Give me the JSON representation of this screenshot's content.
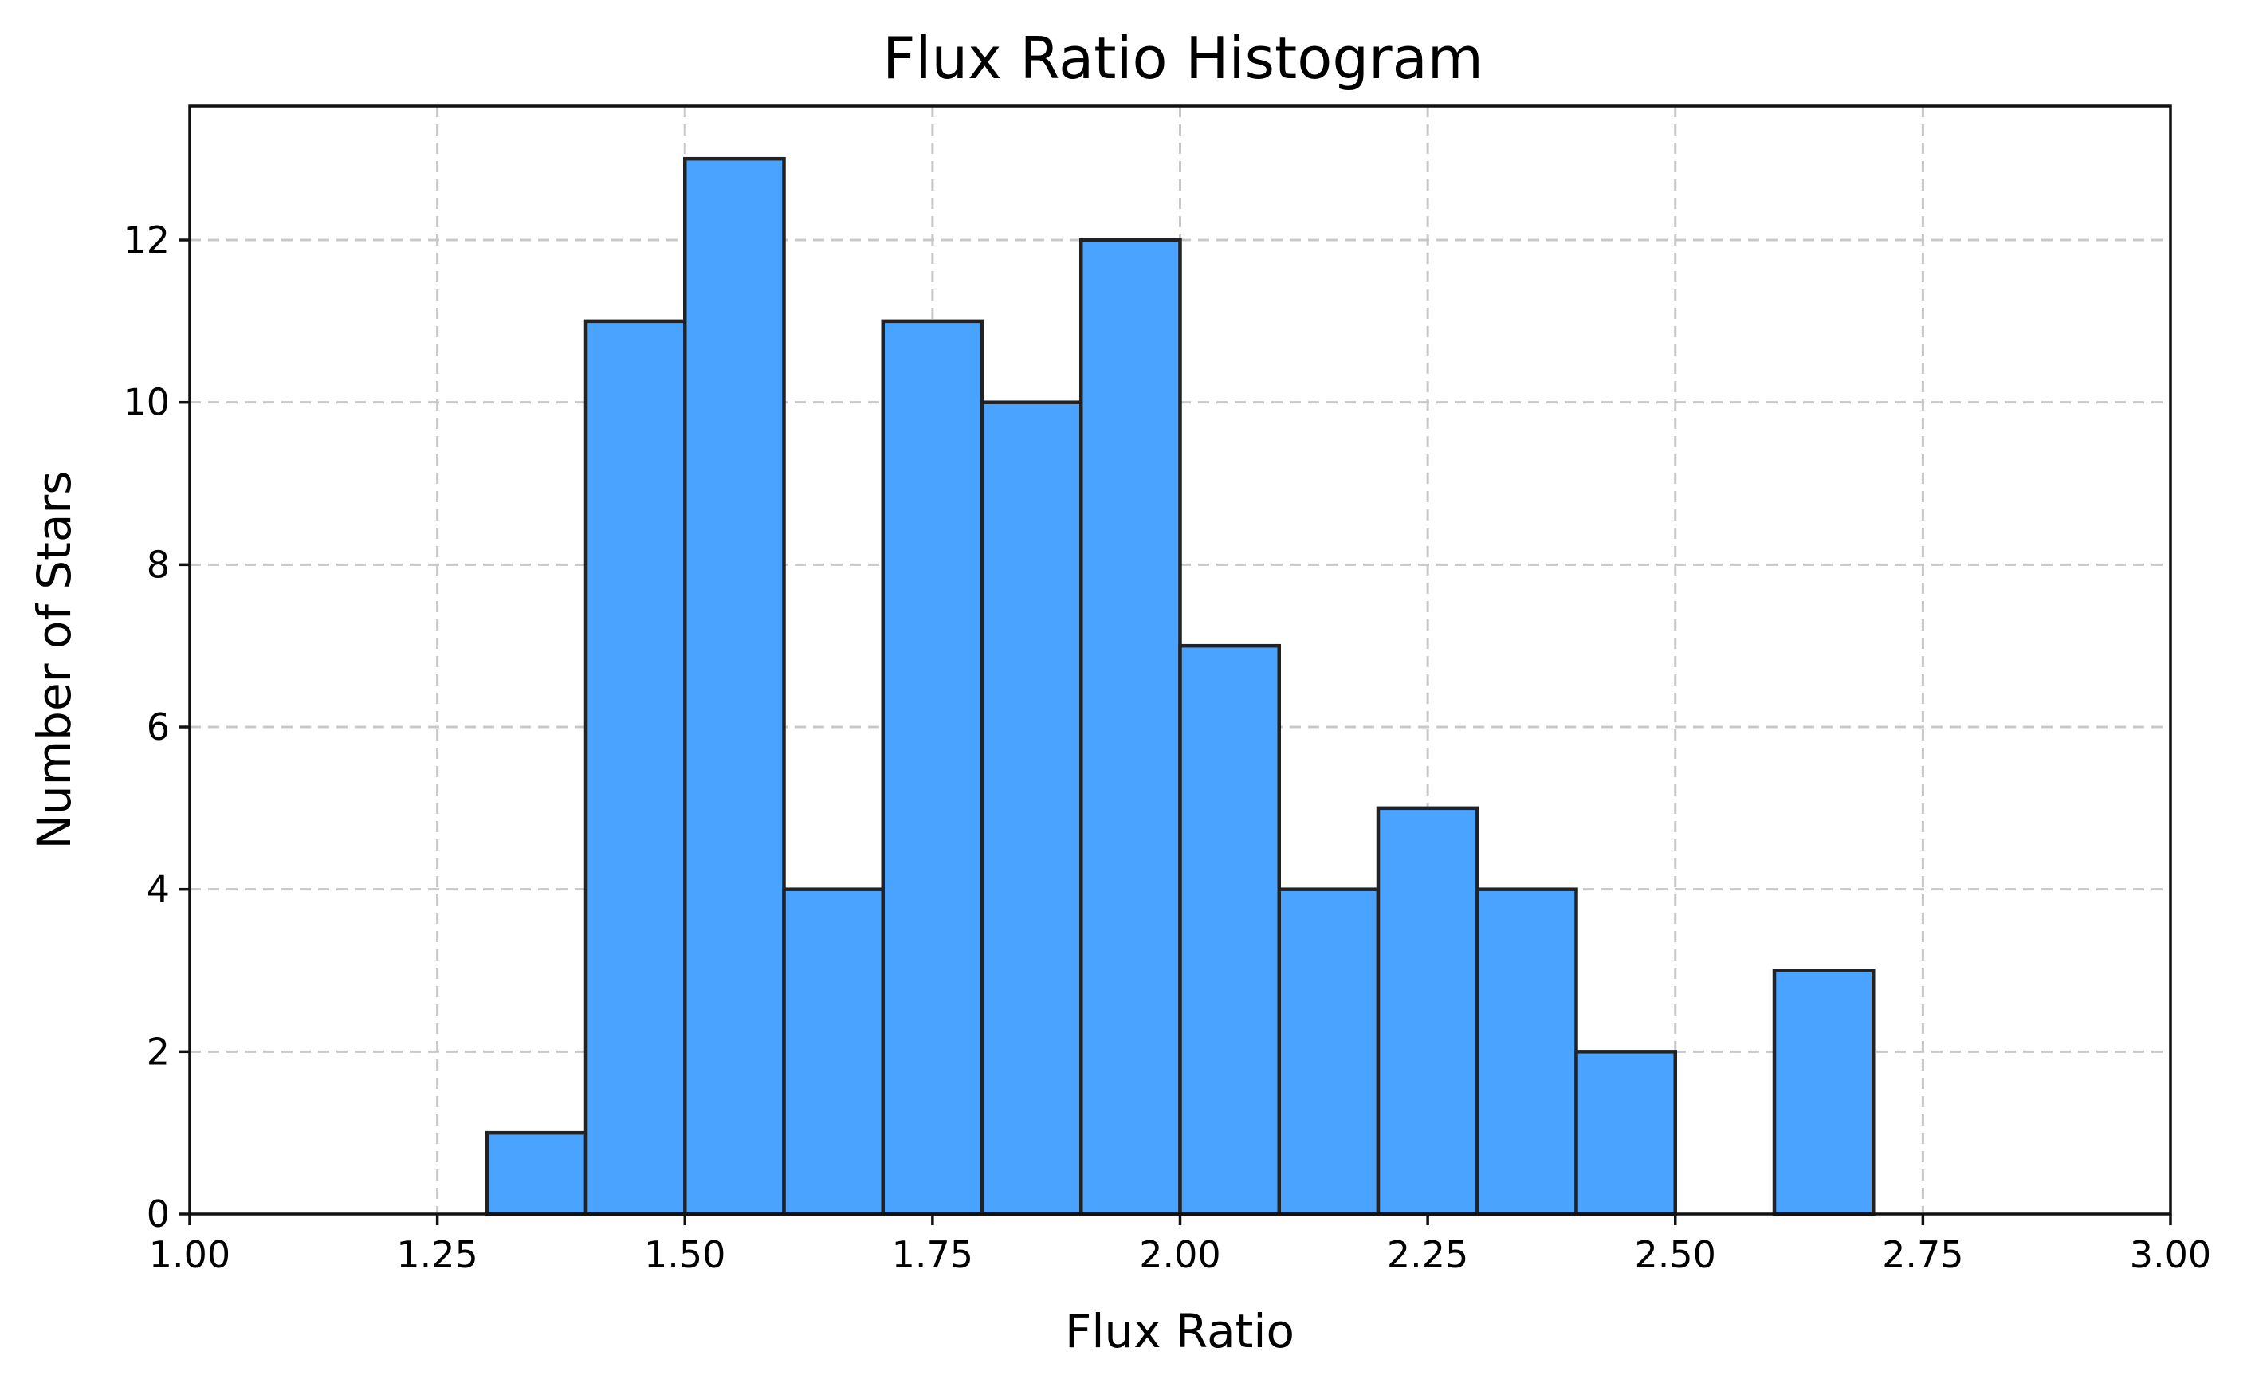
{
  "chart_data": {
    "type": "bar",
    "title": "Flux Ratio Histogram",
    "xlabel": "Flux Ratio",
    "ylabel": "Number of Stars",
    "xlim": [
      1.0,
      3.0
    ],
    "ylim": [
      0,
      13.65
    ],
    "xticks": [
      "1.00",
      "1.25",
      "1.50",
      "1.75",
      "2.00",
      "2.25",
      "2.50",
      "2.75",
      "3.00"
    ],
    "yticks": [
      "0",
      "2",
      "4",
      "6",
      "8",
      "10",
      "12"
    ],
    "grid": true,
    "bar_color": "#4aa3ff",
    "edge_color": "#222222",
    "bins": [
      {
        "x0": 1.3,
        "x1": 1.4,
        "count": 1
      },
      {
        "x0": 1.4,
        "x1": 1.5,
        "count": 11
      },
      {
        "x0": 1.5,
        "x1": 1.6,
        "count": 13
      },
      {
        "x0": 1.6,
        "x1": 1.7,
        "count": 4
      },
      {
        "x0": 1.7,
        "x1": 1.8,
        "count": 11
      },
      {
        "x0": 1.8,
        "x1": 1.9,
        "count": 10
      },
      {
        "x0": 1.9,
        "x1": 2.0,
        "count": 12
      },
      {
        "x0": 2.0,
        "x1": 2.1,
        "count": 7
      },
      {
        "x0": 2.1,
        "x1": 2.2,
        "count": 4
      },
      {
        "x0": 2.2,
        "x1": 2.3,
        "count": 5
      },
      {
        "x0": 2.3,
        "x1": 2.4,
        "count": 4
      },
      {
        "x0": 2.4,
        "x1": 2.5,
        "count": 2
      },
      {
        "x0": 2.5,
        "x1": 2.6,
        "count": 0
      },
      {
        "x0": 2.6,
        "x1": 2.7,
        "count": 3
      },
      {
        "x0": 2.7,
        "x1": 2.8,
        "count": 0
      },
      {
        "x0": 2.8,
        "x1": 2.9,
        "count": 0
      }
    ]
  }
}
